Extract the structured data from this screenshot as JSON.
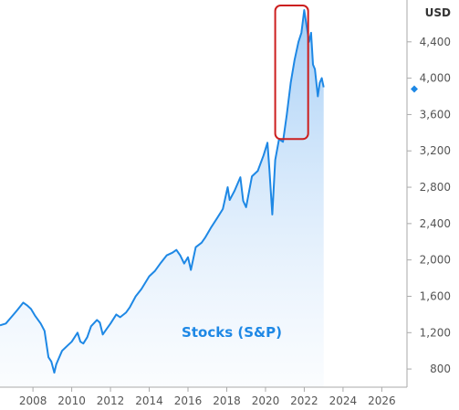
{
  "chart_data": {
    "type": "area",
    "unit_label": "USD",
    "series_label": "Stocks (S&P)",
    "x_ticks": [
      "2008",
      "2010",
      "2012",
      "2014",
      "2016",
      "2018",
      "2020",
      "2022",
      "2024",
      "2026"
    ],
    "y_ticks": [
      "800",
      "1,200",
      "1,600",
      "2,000",
      "2,400",
      "2,800",
      "3,200",
      "3,600",
      "4,000",
      "4,400"
    ],
    "xlim": [
      2006.3,
      2027.3
    ],
    "ylim": [
      600,
      4800
    ],
    "current_value": 3880,
    "highlight_range": {
      "x": [
        2020.5,
        2022.2
      ],
      "y": [
        3330,
        4800
      ]
    },
    "colors": {
      "line": "#1e88e5",
      "fill_top": "#9cc9f5",
      "fill_bottom": "#f3f8fe",
      "highlight": "#cc1f1f",
      "axis": "#aaaaaa"
    },
    "series": [
      {
        "name": "Stocks (S&P)",
        "x": [
          2006.3,
          2006.6,
          2006.8,
          2007.0,
          2007.2,
          2007.5,
          2007.7,
          2007.9,
          2008.1,
          2008.4,
          2008.6,
          2008.8,
          2008.95,
          2009.1,
          2009.2,
          2009.3,
          2009.5,
          2009.8,
          2010.0,
          2010.3,
          2010.45,
          2010.6,
          2010.8,
          2011.0,
          2011.3,
          2011.45,
          2011.6,
          2011.8,
          2012.0,
          2012.3,
          2012.5,
          2012.8,
          2013.0,
          2013.3,
          2013.6,
          2014.0,
          2014.3,
          2014.6,
          2014.9,
          2015.2,
          2015.4,
          2015.6,
          2015.8,
          2016.0,
          2016.15,
          2016.4,
          2016.7,
          2016.9,
          2017.2,
          2017.5,
          2017.8,
          2018.05,
          2018.15,
          2018.4,
          2018.7,
          2018.85,
          2019.0,
          2019.3,
          2019.6,
          2019.9,
          2020.1,
          2020.2,
          2020.35,
          2020.5,
          2020.7,
          2020.9,
          2021.1,
          2021.3,
          2021.5,
          2021.7,
          2021.85,
          2022.0,
          2022.1,
          2022.25,
          2022.35,
          2022.45,
          2022.55,
          2022.7,
          2022.8,
          2022.9,
          2023.0
        ],
        "values": [
          1280,
          1300,
          1350,
          1400,
          1450,
          1530,
          1500,
          1460,
          1390,
          1300,
          1220,
          930,
          880,
          760,
          850,
          900,
          1000,
          1060,
          1100,
          1200,
          1100,
          1080,
          1150,
          1270,
          1340,
          1310,
          1180,
          1240,
          1300,
          1400,
          1370,
          1420,
          1480,
          1600,
          1680,
          1820,
          1880,
          1970,
          2050,
          2080,
          2110,
          2050,
          1960,
          2030,
          1890,
          2140,
          2190,
          2250,
          2360,
          2460,
          2560,
          2800,
          2660,
          2760,
          2910,
          2650,
          2580,
          2920,
          2980,
          3150,
          3290,
          3000,
          2500,
          3100,
          3330,
          3300,
          3600,
          3950,
          4200,
          4400,
          4500,
          4750,
          4600,
          4400,
          4500,
          4150,
          4100,
          3800,
          3950,
          4000,
          3900
        ]
      }
    ]
  }
}
